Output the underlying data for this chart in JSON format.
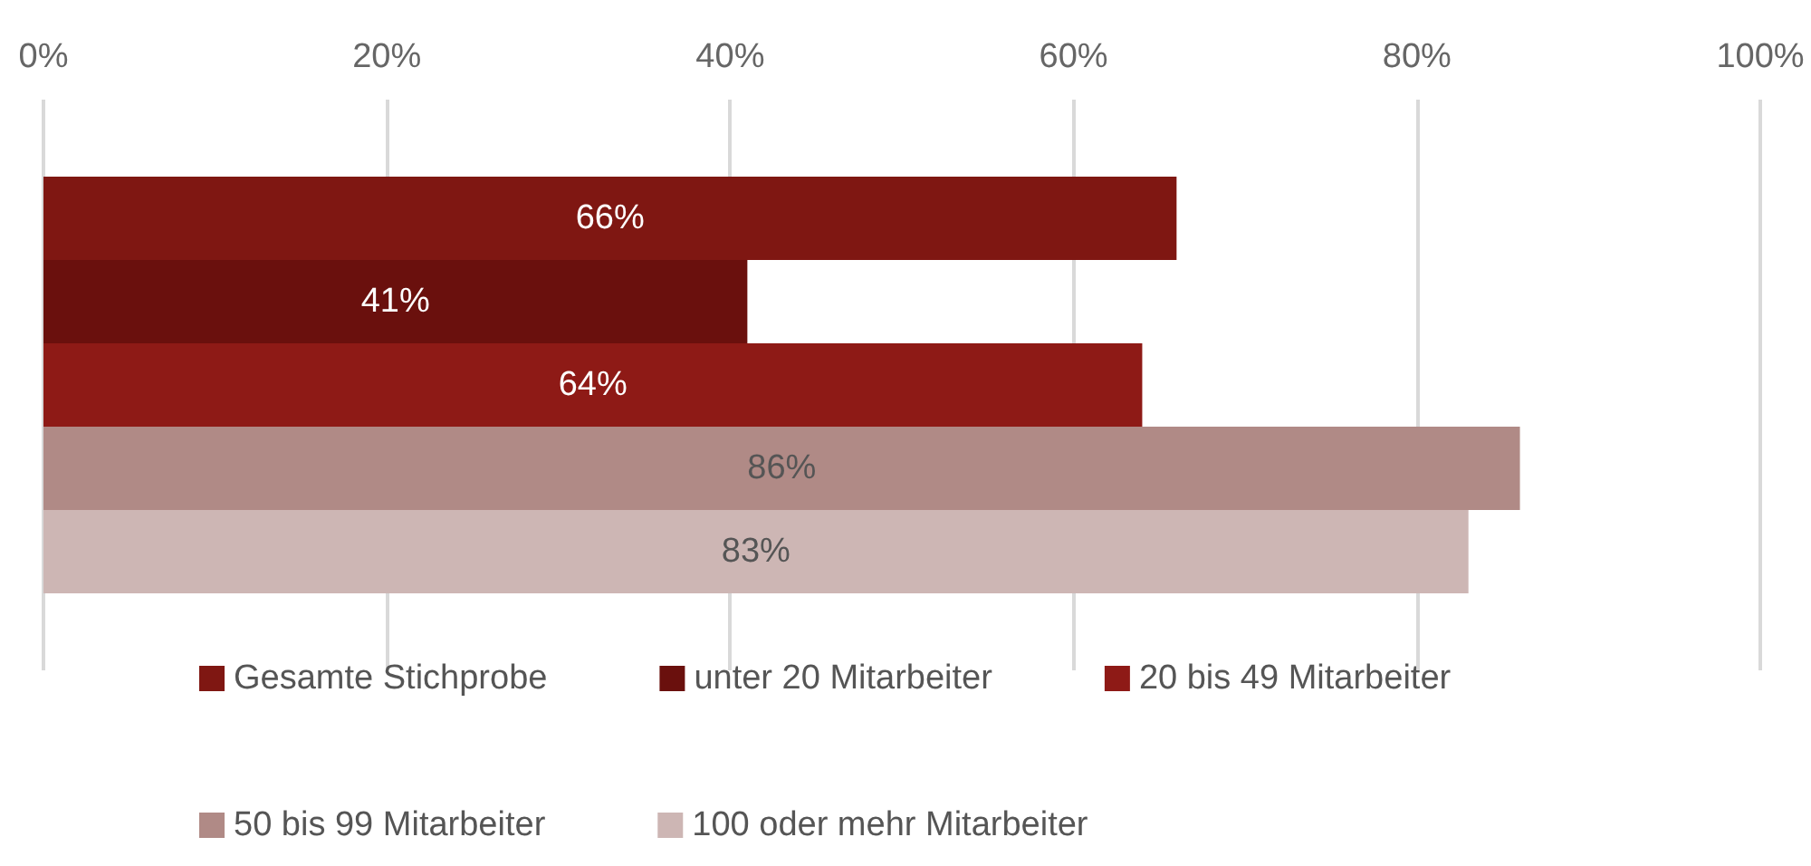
{
  "chart_data": {
    "type": "bar",
    "orientation": "horizontal",
    "categories": [
      null
    ],
    "series": [
      {
        "name": "Gesamte Stichprobe",
        "color": "#7f1712",
        "values": [
          66
        ],
        "value_labels": [
          "66%"
        ]
      },
      {
        "name": "unter 20 Mitarbeiter",
        "color": "#6a100d",
        "values": [
          41
        ],
        "value_labels": [
          "41%"
        ]
      },
      {
        "name": "20 bis 49 Mitarbeiter",
        "color": "#8e1a16",
        "values": [
          64
        ],
        "value_labels": [
          "64%"
        ]
      },
      {
        "name": "50 bis 99 Mitarbeiter",
        "color": "#b08a86",
        "values": [
          86
        ],
        "value_labels": [
          "86%"
        ]
      },
      {
        "name": "100 oder mehr Mitarbeiter",
        "color": "#cdb6b4",
        "values": [
          83
        ],
        "value_labels": [
          "83%"
        ]
      }
    ],
    "xlim": [
      0,
      100
    ],
    "xticks": [
      {
        "value": 0,
        "label": "0%"
      },
      {
        "value": 20,
        "label": "20%"
      },
      {
        "value": 40,
        "label": "40%"
      },
      {
        "value": 60,
        "label": "60%"
      },
      {
        "value": 80,
        "label": "80%"
      },
      {
        "value": 100,
        "label": "100%"
      }
    ],
    "grid": "x",
    "legend": "bottom"
  }
}
